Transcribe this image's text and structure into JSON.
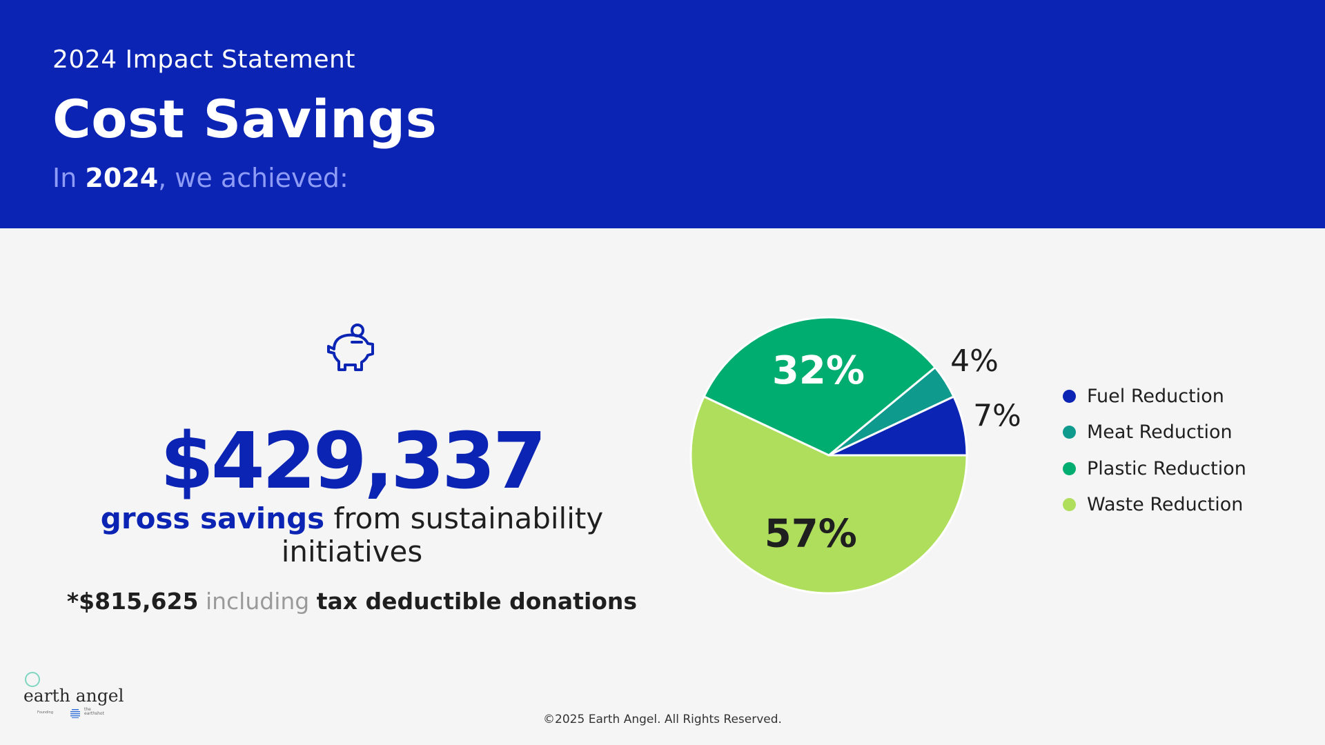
{
  "header": {
    "eyebrow": "2024 Impact Statement",
    "title": "Cost Savings",
    "subtitle_prefix": "In ",
    "subtitle_year": "2024",
    "subtitle_suffix": ", we achieved:"
  },
  "icons": {
    "savings": "piggy-bank-icon"
  },
  "main": {
    "amount": "$429,337",
    "tagline_emphasis": "gross savings",
    "tagline_rest": " from sustainability initiatives",
    "note_amount": "*$815,625",
    "note_including": " including ",
    "note_rest": "tax deductible donations"
  },
  "chart_data": {
    "type": "pie",
    "title": "",
    "slices": [
      {
        "name": "Fuel Reduction",
        "value": 7,
        "label": "7%",
        "color": "#0b24b3"
      },
      {
        "name": "Meat Reduction",
        "value": 4,
        "label": "4%",
        "color": "#0e9a8c"
      },
      {
        "name": "Plastic Reduction",
        "value": 32,
        "label": "32%",
        "color": "#00ad71"
      },
      {
        "name": "Waste Reduction",
        "value": 57,
        "label": "57%",
        "color": "#aede5c"
      }
    ],
    "legend_position": "right"
  },
  "colors": {
    "brand_blue": "#0b24b3",
    "background": "#f5f5f5"
  },
  "brand": {
    "logo_text": "earth angel",
    "logo_sub_label": "Founding",
    "logo_sub_brand": "the\nearthshot"
  },
  "footer": {
    "copyright": "©2025 Earth Angel. All Rights Reserved."
  }
}
